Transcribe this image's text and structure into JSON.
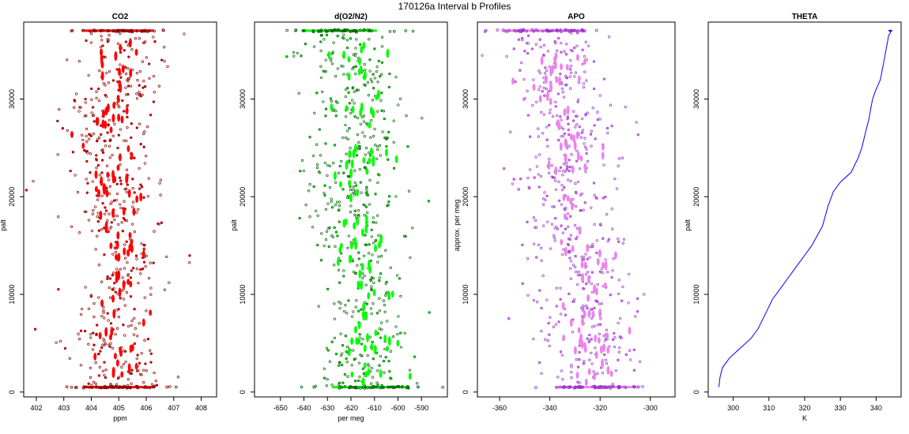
{
  "figure": {
    "title": "170126a   Interval b Profiles"
  },
  "chart_data": [
    {
      "type": "scatter",
      "title": "CO2",
      "xlabel": "ppm",
      "ylabel": "palt",
      "xlim": [
        401.8,
        408.3
      ],
      "ylim": [
        -500,
        37800
      ],
      "xticks": [
        402,
        403,
        404,
        405,
        406,
        407,
        408
      ],
      "yticks": [
        0,
        10000,
        20000,
        30000
      ],
      "grid": false,
      "colors": {
        "main": "#ff0000",
        "outline": "#8b0000"
      },
      "profile": {
        "altitude": [
          500,
          2000,
          4000,
          6000,
          8000,
          10000,
          12000,
          14000,
          16000,
          18000,
          20000,
          22000,
          24000,
          26000,
          28000,
          30000,
          32000,
          34000,
          36000,
          37000
        ],
        "value": [
          405.0,
          404.9,
          404.8,
          404.6,
          404.8,
          405.0,
          405.3,
          405.5,
          405.0,
          404.6,
          404.9,
          404.7,
          404.8,
          404.7,
          404.4,
          404.8,
          405.3,
          405.1,
          405.1,
          405.0
        ]
      },
      "spread": 0.8
    },
    {
      "type": "scatter",
      "title": "d(O2/N2)",
      "xlabel": "per meg",
      "ylabel": "palt",
      "xlim": [
        -658,
        -582
      ],
      "ylim": [
        -500,
        37800
      ],
      "xticks": [
        -650,
        -640,
        -630,
        -620,
        -610,
        -600,
        -590
      ],
      "yticks": [
        0,
        10000,
        20000,
        30000
      ],
      "grid": false,
      "colors": {
        "main": "#00ff00",
        "outline": "#006400"
      },
      "profile": {
        "altitude": [
          500,
          2000,
          4000,
          6000,
          8000,
          10000,
          12000,
          14000,
          16000,
          18000,
          20000,
          22000,
          24000,
          26000,
          28000,
          30000,
          32000,
          34000,
          36000,
          37000
        ],
        "value": [
          -612,
          -611,
          -613,
          -613,
          -615,
          -613,
          -613,
          -617,
          -615,
          -620,
          -615,
          -622,
          -616,
          -615,
          -612,
          -619,
          -615,
          -618,
          -622,
          -625
        ]
      },
      "spread": 10
    },
    {
      "type": "scatter",
      "title": "APO",
      "xlabel": "",
      "ylabel": "approx. per meg",
      "xlim": [
        -366,
        -293
      ],
      "ylim": [
        -500,
        37800
      ],
      "xticks": [
        -360,
        -340,
        -320,
        -300
      ],
      "yticks": [
        0,
        10000,
        20000,
        30000
      ],
      "grid": false,
      "colors": {
        "main": "#ee82ee",
        "outline": "#9932cc"
      },
      "profile": {
        "altitude": [
          500,
          2000,
          4000,
          6000,
          8000,
          10000,
          12000,
          14000,
          16000,
          18000,
          20000,
          22000,
          24000,
          26000,
          28000,
          30000,
          32000,
          34000,
          36000,
          37000
        ],
        "value": [
          -322,
          -322,
          -323,
          -324,
          -326,
          -326,
          -326,
          -328,
          -330,
          -331,
          -332,
          -333,
          -330,
          -332,
          -330,
          -335,
          -337,
          -337,
          -340,
          -342
        ]
      },
      "spread": 10
    },
    {
      "type": "line",
      "title": "THETA",
      "xlabel": "K",
      "ylabel": "palt",
      "xlim": [
        295,
        345
      ],
      "ylim": [
        -500,
        37800
      ],
      "xticks": [
        300,
        310,
        320,
        330,
        340
      ],
      "yticks": [
        0,
        10000,
        20000,
        30000
      ],
      "grid": false,
      "colors": {
        "line": "#0000ff"
      },
      "series": [
        {
          "x": [
            296,
            296.3,
            297,
            299,
            302,
            305,
            307,
            309,
            311,
            313,
            315,
            317,
            319,
            320,
            322,
            323.5,
            325,
            326.5,
            328,
            330,
            333,
            335,
            336,
            337,
            338,
            338.5,
            339,
            340,
            341.2,
            342,
            342.5,
            343,
            343.5,
            344,
            344
          ],
          "y": [
            500,
            1500,
            2500,
            3500,
            4500,
            5500,
            6500,
            8000,
            9500,
            10500,
            11500,
            12500,
            13500,
            14000,
            15000,
            16000,
            17000,
            19000,
            20500,
            21500,
            22500,
            24000,
            25000,
            26500,
            28000,
            29000,
            30000,
            31000,
            32000,
            33500,
            34500,
            35500,
            36500,
            36800,
            37000
          ]
        }
      ]
    }
  ]
}
